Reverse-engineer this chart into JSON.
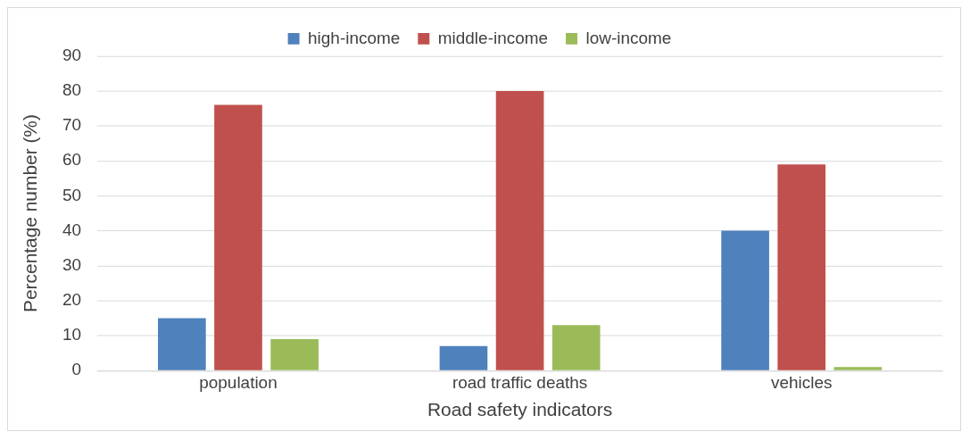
{
  "chart_data": {
    "type": "bar",
    "xlabel": "Road safety indicators",
    "ylabel": "Percentage number (%)",
    "categories": [
      "population",
      "road traffic deaths",
      "vehicles"
    ],
    "series": [
      {
        "name": "high-income",
        "color": "#4f81bd",
        "values": [
          15,
          7,
          40
        ]
      },
      {
        "name": "middle-income",
        "color": "#c0504d",
        "values": [
          76,
          80,
          59
        ]
      },
      {
        "name": "low-income",
        "color": "#9bbb59",
        "values": [
          9,
          13,
          1
        ]
      }
    ],
    "ylim": [
      0,
      90
    ],
    "yticks": [
      0,
      10,
      20,
      30,
      40,
      50,
      60,
      70,
      80,
      90
    ],
    "grid": "y",
    "legend": "top"
  }
}
